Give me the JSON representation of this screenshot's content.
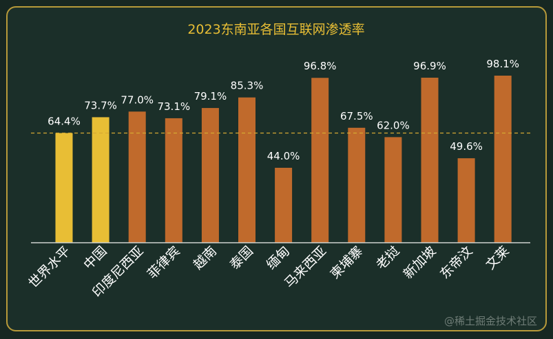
{
  "chart_data": {
    "type": "bar",
    "title": "2023东南亚各国互联网渗透率",
    "categories": [
      "世界水平",
      "中国",
      "印度尼西亚",
      "菲律宾",
      "越南",
      "泰国",
      "缅甸",
      "马来西亚",
      "柬埔寨",
      "老挝",
      "新加坡",
      "东帝汶",
      "文莱"
    ],
    "values": [
      64.4,
      73.7,
      77.0,
      73.1,
      79.1,
      85.3,
      44.0,
      96.8,
      67.5,
      62.0,
      96.9,
      49.6,
      98.1
    ],
    "value_labels": [
      "64.4%",
      "73.7%",
      "77.0%",
      "73.1%",
      "79.1%",
      "85.3%",
      "44.0%",
      "96.8%",
      "67.5%",
      "62.0%",
      "96.9%",
      "49.6%",
      "98.1%"
    ],
    "highlight": [
      "世界水平",
      "中国"
    ],
    "reference_line": 64.4,
    "ylim": [
      0,
      100
    ],
    "grid": false,
    "legend": "none",
    "colors": {
      "highlight": "#e8be35",
      "default": "#c06a2c",
      "title": "#e8be35",
      "text": "#ffffff",
      "background": "#1b2f29",
      "border": "#b89a3a"
    }
  },
  "watermark": "@稀土掘金技术社区"
}
